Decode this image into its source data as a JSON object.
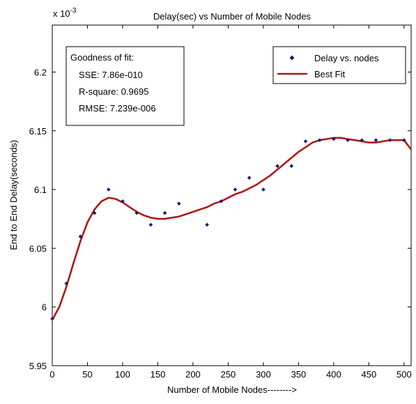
{
  "chart_data": {
    "type": "scatter",
    "title": "Delay(sec) vs Number of Mobile Nodes",
    "xlabel": "Number of Mobile Nodes-------->",
    "ylabel": "End to End Delay(seconds)",
    "y_multiplier": "x 10",
    "y_exponent": "-3",
    "xlim": [
      0,
      510
    ],
    "ylim": [
      5.95,
      6.24
    ],
    "x_ticks": [
      0,
      50,
      100,
      150,
      200,
      250,
      300,
      350,
      400,
      450,
      500
    ],
    "x_tick_labels": [
      "0",
      "50",
      "100",
      "150",
      "200",
      "250",
      "300",
      "350",
      "400",
      "450",
      "500"
    ],
    "y_ticks": [
      5.95,
      6,
      6.05,
      6.1,
      6.15,
      6.2
    ],
    "y_tick_labels": [
      "5.95",
      "6",
      "6.05",
      "6.1",
      "6.15",
      "6.2"
    ],
    "grid": false,
    "legend_position": "top-right",
    "goodness_of_fit": {
      "heading": "Goodness of fit:",
      "sse": "SSE: 7.86e-010",
      "rsquare": "R-square: 0.9695",
      "rmse": "RMSE: 7.239e-006"
    },
    "series": [
      {
        "name": "Delay vs. nodes",
        "kind": "scatter",
        "color": "#1a1a6e",
        "x": [
          0,
          20,
          40,
          60,
          80,
          100,
          120,
          140,
          160,
          180,
          220,
          240,
          260,
          280,
          300,
          320,
          340,
          360,
          380,
          400,
          420,
          440,
          460,
          480,
          500
        ],
        "y": [
          5.99,
          6.02,
          6.06,
          6.08,
          6.1,
          6.09,
          6.08,
          6.07,
          6.08,
          6.088,
          6.07,
          6.09,
          6.1,
          6.11,
          6.1,
          6.12,
          6.12,
          6.141,
          6.142,
          6.143,
          6.142,
          6.142,
          6.142,
          6.142,
          6.142
        ]
      },
      {
        "name": "Best Fit",
        "kind": "line",
        "color": "#b01818",
        "x": [
          0,
          10,
          20,
          30,
          40,
          50,
          60,
          70,
          80,
          90,
          100,
          110,
          120,
          130,
          140,
          150,
          160,
          170,
          180,
          190,
          200,
          210,
          220,
          230,
          240,
          250,
          260,
          270,
          280,
          290,
          300,
          310,
          320,
          330,
          340,
          350,
          360,
          370,
          380,
          390,
          400,
          410,
          420,
          430,
          440,
          450,
          460,
          470,
          480,
          490,
          500,
          510
        ],
        "y": [
          5.989,
          6.0,
          6.017,
          6.037,
          6.056,
          6.072,
          6.083,
          6.09,
          6.093,
          6.092,
          6.089,
          6.085,
          6.081,
          6.078,
          6.076,
          6.075,
          6.075,
          6.076,
          6.077,
          6.079,
          6.081,
          6.083,
          6.085,
          6.088,
          6.09,
          6.093,
          6.096,
          6.098,
          6.101,
          6.104,
          6.108,
          6.112,
          6.117,
          6.122,
          6.127,
          6.132,
          6.136,
          6.14,
          6.142,
          6.143,
          6.144,
          6.144,
          6.143,
          6.142,
          6.141,
          6.14,
          6.14,
          6.141,
          6.142,
          6.142,
          6.142,
          6.134
        ]
      }
    ]
  }
}
